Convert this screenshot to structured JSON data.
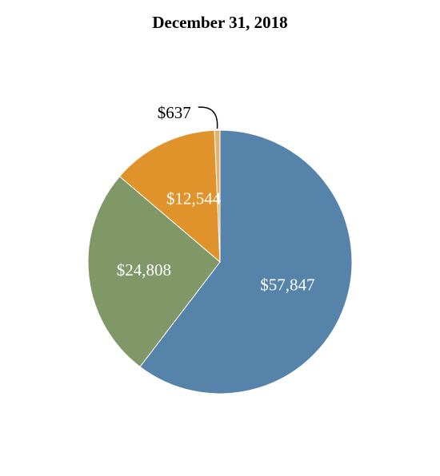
{
  "chart_data": {
    "type": "pie",
    "title": "December 31, 2018",
    "slices": [
      {
        "label": "$57,847",
        "value": 57847,
        "color": "#5683a9",
        "label_color": "#ffffff"
      },
      {
        "label": "$24,808",
        "value": 24808,
        "color": "#809868",
        "label_color": "#ffffff"
      },
      {
        "label": "$12,544",
        "value": 12544,
        "color": "#e0922b",
        "label_color": "#ffffff"
      },
      {
        "label": "$637",
        "value": 637,
        "color": "#e4b26b",
        "label_color": "#000000"
      }
    ],
    "start_angle": "12 o'clock",
    "direction": "clockwise"
  }
}
